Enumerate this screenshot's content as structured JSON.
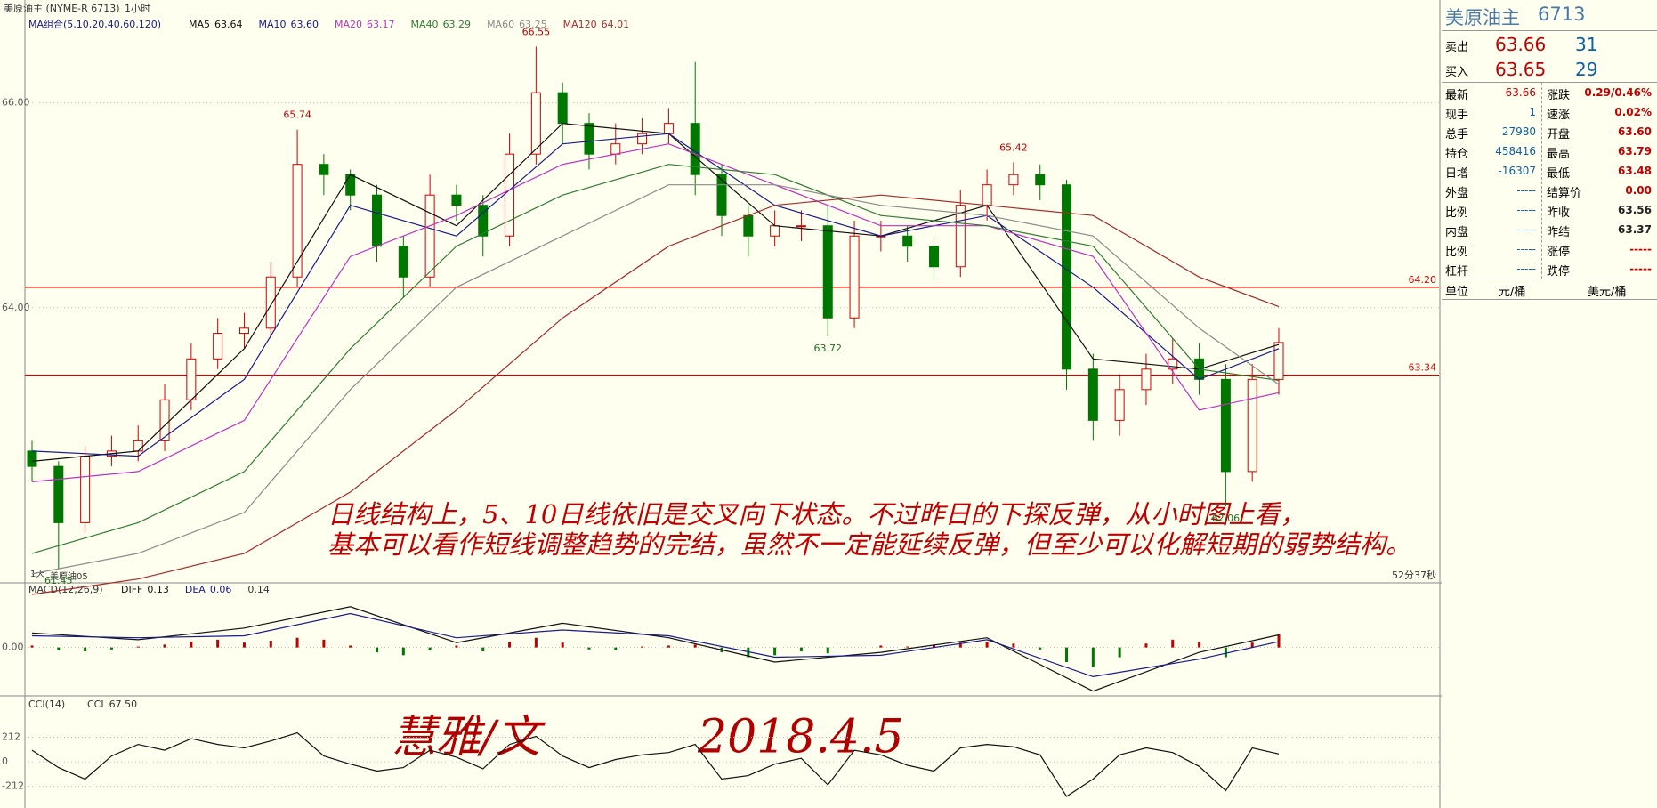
{
  "toolbar": {
    "symbol": "美原油主 (NYME-R 6713)",
    "period": "1小时"
  },
  "chart_data": [
    {
      "type": "candlestick",
      "legend_title": "MA组合(5,10,20,40,60,120)",
      "up_color": "#d00000",
      "down_color": "#007800",
      "open": [
        62.6,
        62.45,
        61.9,
        62.55,
        62.6,
        62.7,
        63.1,
        63.5,
        63.75,
        63.8,
        64.3,
        65.4,
        65.3,
        65.1,
        64.6,
        64.3,
        65.1,
        65.0,
        64.7,
        65.5,
        66.1,
        65.8,
        65.5,
        65.6,
        65.7,
        65.8,
        65.3,
        64.9,
        64.7,
        64.8,
        64.8,
        63.9,
        64.7,
        64.7,
        64.6,
        64.4,
        65.0,
        65.2,
        65.3,
        65.2,
        63.4,
        62.9,
        63.2,
        63.4,
        63.5,
        63.3,
        62.4,
        63.3
      ],
      "high": [
        62.7,
        62.5,
        62.65,
        62.75,
        62.85,
        63.25,
        63.65,
        63.9,
        63.95,
        64.45,
        65.74,
        65.5,
        65.35,
        65.2,
        64.7,
        65.3,
        65.2,
        65.1,
        65.7,
        66.55,
        66.2,
        65.9,
        65.8,
        65.85,
        65.95,
        66.4,
        65.4,
        65.0,
        64.95,
        64.95,
        65.0,
        64.85,
        64.85,
        64.8,
        64.65,
        65.15,
        65.35,
        65.42,
        65.4,
        65.25,
        63.55,
        63.35,
        63.55,
        63.7,
        63.65,
        63.45,
        63.45,
        63.8
      ],
      "low": [
        62.3,
        61.45,
        61.8,
        62.45,
        62.5,
        62.6,
        63.0,
        63.4,
        63.6,
        63.7,
        64.2,
        65.1,
        64.95,
        64.45,
        64.1,
        64.2,
        64.85,
        64.5,
        64.6,
        65.4,
        65.6,
        65.35,
        65.4,
        65.5,
        65.6,
        65.1,
        64.7,
        64.5,
        64.6,
        64.65,
        63.72,
        63.8,
        64.55,
        64.45,
        64.25,
        64.3,
        64.85,
        65.1,
        65.05,
        63.2,
        62.7,
        62.75,
        63.05,
        63.25,
        63.15,
        62.06,
        62.3,
        63.15
      ],
      "close": [
        62.45,
        61.9,
        62.55,
        62.6,
        62.7,
        63.1,
        63.5,
        63.75,
        63.8,
        64.3,
        65.4,
        65.3,
        65.1,
        64.6,
        64.3,
        65.1,
        65.0,
        64.7,
        65.5,
        66.1,
        65.8,
        65.5,
        65.6,
        65.7,
        65.8,
        65.3,
        64.9,
        64.7,
        64.8,
        64.8,
        63.9,
        64.7,
        64.7,
        64.6,
        64.4,
        65.0,
        65.2,
        65.3,
        65.2,
        63.4,
        62.9,
        63.2,
        63.4,
        63.5,
        63.3,
        62.4,
        63.3,
        63.66
      ],
      "line_x": [
        0,
        4,
        8,
        12,
        16,
        20,
        24,
        28,
        32,
        36,
        40,
        44,
        47
      ],
      "series": [
        {
          "name": "MA5",
          "value_label": "63.64",
          "color": "#101010",
          "values": [
            62.5,
            62.6,
            63.6,
            65.3,
            64.8,
            65.8,
            65.7,
            64.8,
            64.7,
            65.0,
            63.5,
            63.4,
            63.64
          ]
        },
        {
          "name": "MA10",
          "value_label": "63.60",
          "color": "#1a1a8c",
          "values": [
            62.6,
            62.55,
            63.3,
            65.0,
            64.7,
            65.6,
            65.7,
            65.0,
            64.7,
            64.9,
            64.2,
            63.3,
            63.6
          ]
        },
        {
          "name": "MA20",
          "value_label": "63.17",
          "color": "#c030c0",
          "values": [
            62.3,
            62.4,
            62.9,
            64.5,
            64.9,
            65.4,
            65.6,
            65.2,
            64.8,
            64.8,
            64.5,
            63.0,
            63.17
          ]
        },
        {
          "name": "MA40",
          "value_label": "63.29",
          "color": "#2e7d32",
          "values": [
            61.6,
            61.9,
            62.4,
            63.6,
            64.6,
            65.1,
            65.4,
            65.3,
            64.9,
            64.8,
            64.6,
            63.4,
            63.29
          ]
        },
        {
          "name": "MA60",
          "value_label": "63.25",
          "color": "#8a8a8a",
          "values": [
            61.4,
            61.6,
            62.0,
            63.2,
            64.2,
            64.7,
            65.2,
            65.2,
            65.0,
            64.9,
            64.7,
            63.8,
            63.25
          ]
        },
        {
          "name": "MA120",
          "value_label": "64.01",
          "color": "#a52a2a",
          "values": [
            61.2,
            61.35,
            61.6,
            62.2,
            63.0,
            63.9,
            64.6,
            65.0,
            65.1,
            65.0,
            64.9,
            64.3,
            64.01
          ]
        }
      ],
      "ylim": [
        61.33,
        66.84
      ],
      "yticks": [
        {
          "value": 64,
          "label": "64.00"
        },
        {
          "value": 66,
          "label": "66.00"
        }
      ],
      "grid": true,
      "levels": [
        {
          "value": 64.2,
          "label": "64.20"
        },
        {
          "value": 63.34,
          "label": "63.34"
        }
      ],
      "level_color": "#d00000",
      "annotation": [
        "日线结构上，5、10日线依旧是交叉向下状态。不过昨日的下探反弹，从小时图上看，",
        "基本可以看作短线调整趋势的完结，虽然不一定能延续反弹，但至少可以化解短期的弱势结构。"
      ],
      "footer_left": [
        "1天",
        "美原油05"
      ],
      "footer_right": "52分37秒"
    },
    {
      "type": "macd",
      "title": "MACD(12,26,9)",
      "line_x": [
        0,
        4,
        8,
        12,
        16,
        20,
        24,
        28,
        32,
        36,
        40,
        44,
        47
      ],
      "series": [
        {
          "name": "DIFF",
          "value_label": "0.13",
          "color": "#101010",
          "values": [
            0.15,
            0.08,
            0.2,
            0.42,
            0.05,
            0.25,
            0.1,
            -0.15,
            -0.05,
            0.1,
            -0.45,
            -0.05,
            0.13
          ]
        },
        {
          "name": "DEA",
          "value_label": "0.06",
          "color": "#1a1a8c",
          "values": [
            0.12,
            0.1,
            0.12,
            0.35,
            0.1,
            0.18,
            0.12,
            -0.1,
            -0.08,
            0.08,
            -0.3,
            -0.12,
            0.06
          ]
        }
      ],
      "histogram": [
        0.02,
        -0.03,
        -0.04,
        -0.02,
        0.01,
        0.03,
        0.06,
        0.08,
        0.05,
        0.07,
        0.1,
        0.08,
        0.02,
        -0.05,
        -0.08,
        -0.03,
        0.02,
        -0.04,
        0.06,
        0.1,
        0.05,
        -0.02,
        -0.03,
        0.01,
        0.02,
        0.03,
        -0.05,
        -0.1,
        -0.08,
        -0.04,
        -0.06,
        0.0,
        0.02,
        0.01,
        0.03,
        0.05,
        0.06,
        0.04,
        -0.02,
        -0.15,
        -0.2,
        -0.1,
        0.04,
        0.08,
        0.06,
        -0.1,
        0.05,
        0.14
      ],
      "histogram_label": "0.14",
      "ylim": [
        -0.48,
        0.62
      ],
      "yticks": [
        {
          "value": 0,
          "label": "0.00"
        }
      ]
    },
    {
      "type": "line",
      "title": "CCI(14)",
      "name": "CCI",
      "value_label": "67.50",
      "color": "#101010",
      "values": [
        100,
        -50,
        -150,
        50,
        150,
        100,
        200,
        150,
        120,
        180,
        250,
        50,
        -20,
        -80,
        -50,
        100,
        40,
        -60,
        150,
        220,
        50,
        -50,
        20,
        60,
        80,
        150,
        -150,
        -120,
        -20,
        30,
        -200,
        100,
        60,
        -30,
        -80,
        120,
        150,
        130,
        60,
        -300,
        -150,
        60,
        120,
        80,
        -40,
        -250,
        120,
        67.5
      ],
      "ylim": [
        -400,
        555
      ],
      "yticks": [
        212,
        0,
        -212
      ]
    }
  ],
  "signature": {
    "author": "慧雅/文",
    "date": "2018.4.5"
  },
  "quote": {
    "title": "美原油主",
    "code": "6713",
    "ask": [
      "卖出",
      "63.66",
      "31"
    ],
    "bid": [
      "买入",
      "63.65",
      "29"
    ],
    "rows": [
      [
        "最新",
        "63.66",
        "涨跌",
        "0.29/0.46%"
      ],
      [
        "现手",
        "1",
        "速涨",
        "0.02%"
      ],
      [
        "总手",
        "27980",
        "开盘",
        "63.60"
      ],
      [
        "持仓",
        "458416",
        "最高",
        "63.79"
      ],
      [
        "日增",
        "-16307",
        "最低",
        "63.48"
      ],
      [
        "外盘",
        "-----",
        "结算价",
        "0.00"
      ],
      [
        "比例",
        "-----",
        "昨收",
        "63.56"
      ],
      [
        "内盘",
        "-----",
        "昨结",
        "63.37"
      ],
      [
        "比例",
        "-----",
        "涨停",
        "-----"
      ],
      [
        "杠杆",
        "-----",
        "跌停",
        "-----"
      ]
    ],
    "unit": [
      "单位",
      "元/桶",
      "美元/桶"
    ]
  }
}
